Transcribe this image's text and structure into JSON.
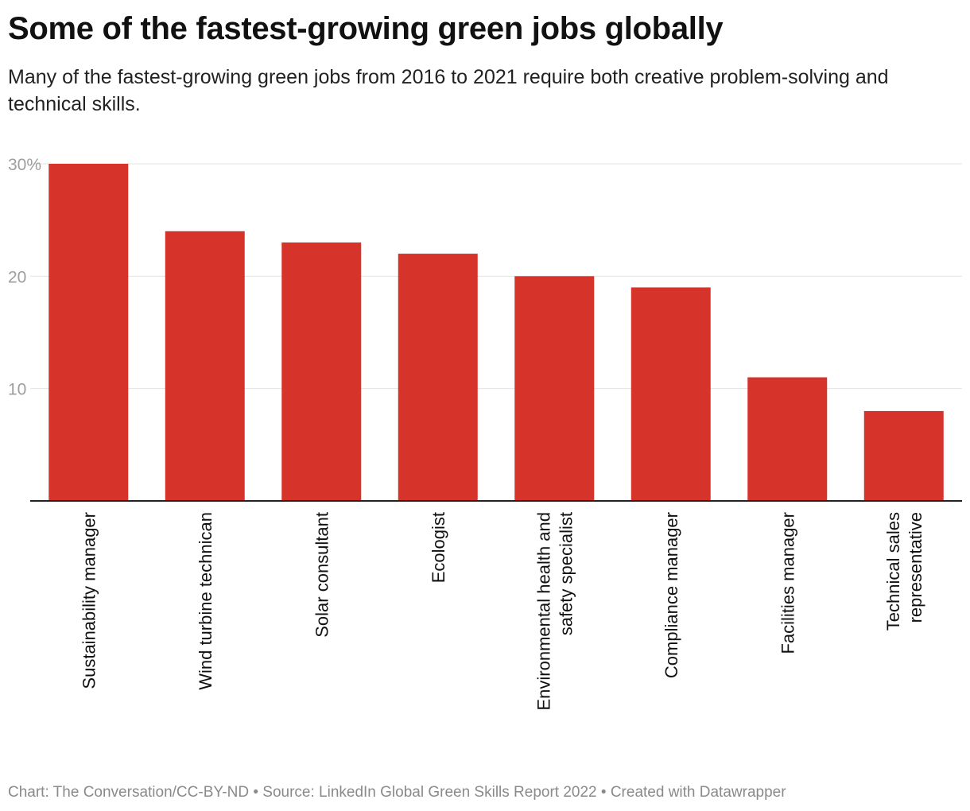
{
  "title": "Some of the fastest-growing green jobs globally",
  "subtitle": "Many of the fastest-growing green jobs from 2016 to 2021 require both creative problem-solving and technical skills.",
  "footer": "Chart: The Conversation/CC-BY-ND • Source: LinkedIn Global Green Skills Report 2022 • Created with Datawrapper",
  "colors": {
    "bar": "#d6342b",
    "grid": "#e3e3e3",
    "axis": "#222222",
    "tick": "#9e9e9e",
    "label": "#111111"
  },
  "chart_data": {
    "type": "bar",
    "title": "Some of the fastest-growing green jobs globally",
    "xlabel": "",
    "ylabel": "",
    "ylim": [
      0,
      30
    ],
    "yticks": [
      {
        "value": 10,
        "label": "10"
      },
      {
        "value": 20,
        "label": "20"
      },
      {
        "value": 30,
        "label": "30%"
      }
    ],
    "grid": true,
    "categories": [
      [
        "Sustainability manager"
      ],
      [
        "Wind turbine technican"
      ],
      [
        "Solar consultant"
      ],
      [
        "Ecologist"
      ],
      [
        "Environmental health and",
        "safety specialist"
      ],
      [
        "Compliance manager"
      ],
      [
        "Facilities manager"
      ],
      [
        "Technical sales",
        "representative"
      ]
    ],
    "values": [
      30,
      24,
      23,
      22,
      20,
      19,
      11,
      8
    ]
  }
}
